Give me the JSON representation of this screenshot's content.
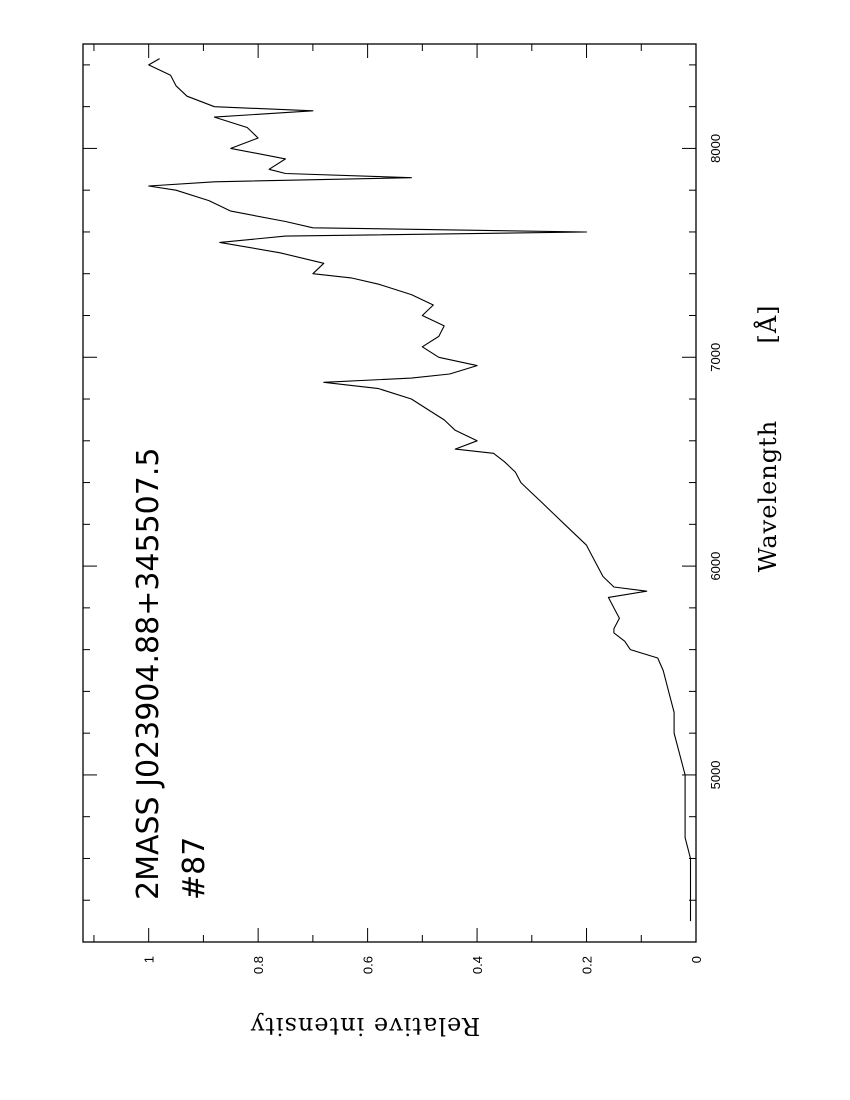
{
  "chart_data": {
    "type": "line",
    "title": "",
    "xlabel": "Wavelength",
    "xunit": "[Å]",
    "ylabel": "Relative intensity",
    "xlim": [
      4200,
      8500
    ],
    "ylim": [
      0,
      1.12
    ],
    "x_ticks": [
      "5000",
      "6000",
      "7000",
      "8000"
    ],
    "x_tick_values": [
      5000,
      6000,
      7000,
      8000
    ],
    "x_minor_step": 200,
    "y_ticks": [
      "0",
      "0.2",
      "0.4",
      "0.6",
      "0.8",
      "1"
    ],
    "y_tick_values": [
      0,
      0.2,
      0.4,
      0.6,
      0.8,
      1.0
    ],
    "y_minor_step": 0.1,
    "annotations": [
      "2MASS  J023904.88+345507.5",
      "#87"
    ],
    "grid": false,
    "orientation": "rotated-90-ccw",
    "series": [
      {
        "color": "#000000",
        "x": [
          4300,
          4400,
          4500,
          4600,
          4700,
          4800,
          4900,
          5000,
          5100,
          5200,
          5300,
          5400,
          5500,
          5560,
          5600,
          5640,
          5680,
          5700,
          5750,
          5800,
          5850,
          5880,
          5900,
          5950,
          6000,
          6050,
          6100,
          6150,
          6200,
          6250,
          6300,
          6350,
          6400,
          6450,
          6500,
          6540,
          6560,
          6600,
          6650,
          6700,
          6750,
          6800,
          6850,
          6880,
          6900,
          6920,
          6960,
          7000,
          7050,
          7100,
          7150,
          7200,
          7250,
          7300,
          7350,
          7380,
          7400,
          7450,
          7500,
          7550,
          7580,
          7600,
          7620,
          7650,
          7700,
          7750,
          7800,
          7820,
          7840,
          7860,
          7880,
          7900,
          7950,
          8000,
          8050,
          8100,
          8150,
          8180,
          8200,
          8250,
          8300,
          8350,
          8400,
          8430
        ],
        "y": [
          0.01,
          0.01,
          0.01,
          0.01,
          0.02,
          0.02,
          0.02,
          0.02,
          0.03,
          0.04,
          0.04,
          0.05,
          0.06,
          0.07,
          0.12,
          0.13,
          0.15,
          0.15,
          0.14,
          0.15,
          0.16,
          0.09,
          0.15,
          0.17,
          0.18,
          0.19,
          0.2,
          0.22,
          0.24,
          0.26,
          0.28,
          0.3,
          0.32,
          0.33,
          0.35,
          0.37,
          0.44,
          0.4,
          0.44,
          0.46,
          0.49,
          0.52,
          0.58,
          0.68,
          0.52,
          0.45,
          0.4,
          0.47,
          0.5,
          0.47,
          0.46,
          0.5,
          0.48,
          0.52,
          0.58,
          0.63,
          0.7,
          0.68,
          0.76,
          0.87,
          0.75,
          0.2,
          0.7,
          0.75,
          0.85,
          0.89,
          0.95,
          1.0,
          0.88,
          0.52,
          0.75,
          0.78,
          0.75,
          0.85,
          0.8,
          0.82,
          0.88,
          0.7,
          0.88,
          0.93,
          0.95,
          0.96,
          1.0,
          0.98
        ]
      }
    ]
  }
}
